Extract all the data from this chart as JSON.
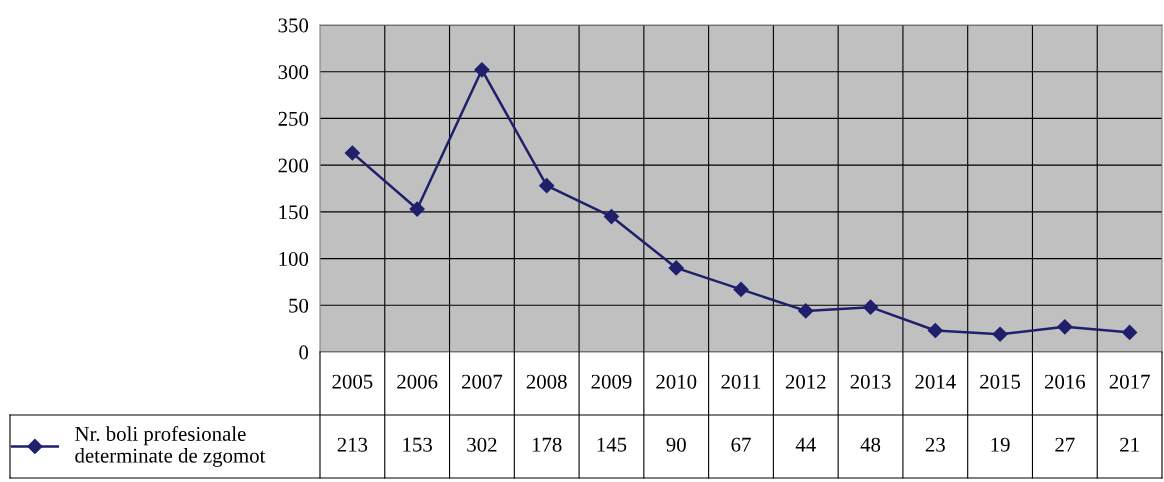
{
  "chart_data": {
    "type": "line",
    "categories": [
      "2005",
      "2006",
      "2007",
      "2008",
      "2009",
      "2010",
      "2011",
      "2012",
      "2013",
      "2014",
      "2015",
      "2016",
      "2017"
    ],
    "series": [
      {
        "name": "Nr. boli profesionale\ndeterminate de zgomot",
        "color": "#1f1f6b",
        "values": [
          213,
          153,
          302,
          178,
          145,
          90,
          67,
          44,
          48,
          23,
          19,
          27,
          21
        ]
      }
    ],
    "ylim": [
      0,
      350
    ],
    "yticks": [
      0,
      50,
      100,
      150,
      200,
      250,
      300,
      350
    ],
    "grid": true,
    "legend": "left",
    "marker": "diamond",
    "line_style": "solid",
    "data_labels": true
  }
}
